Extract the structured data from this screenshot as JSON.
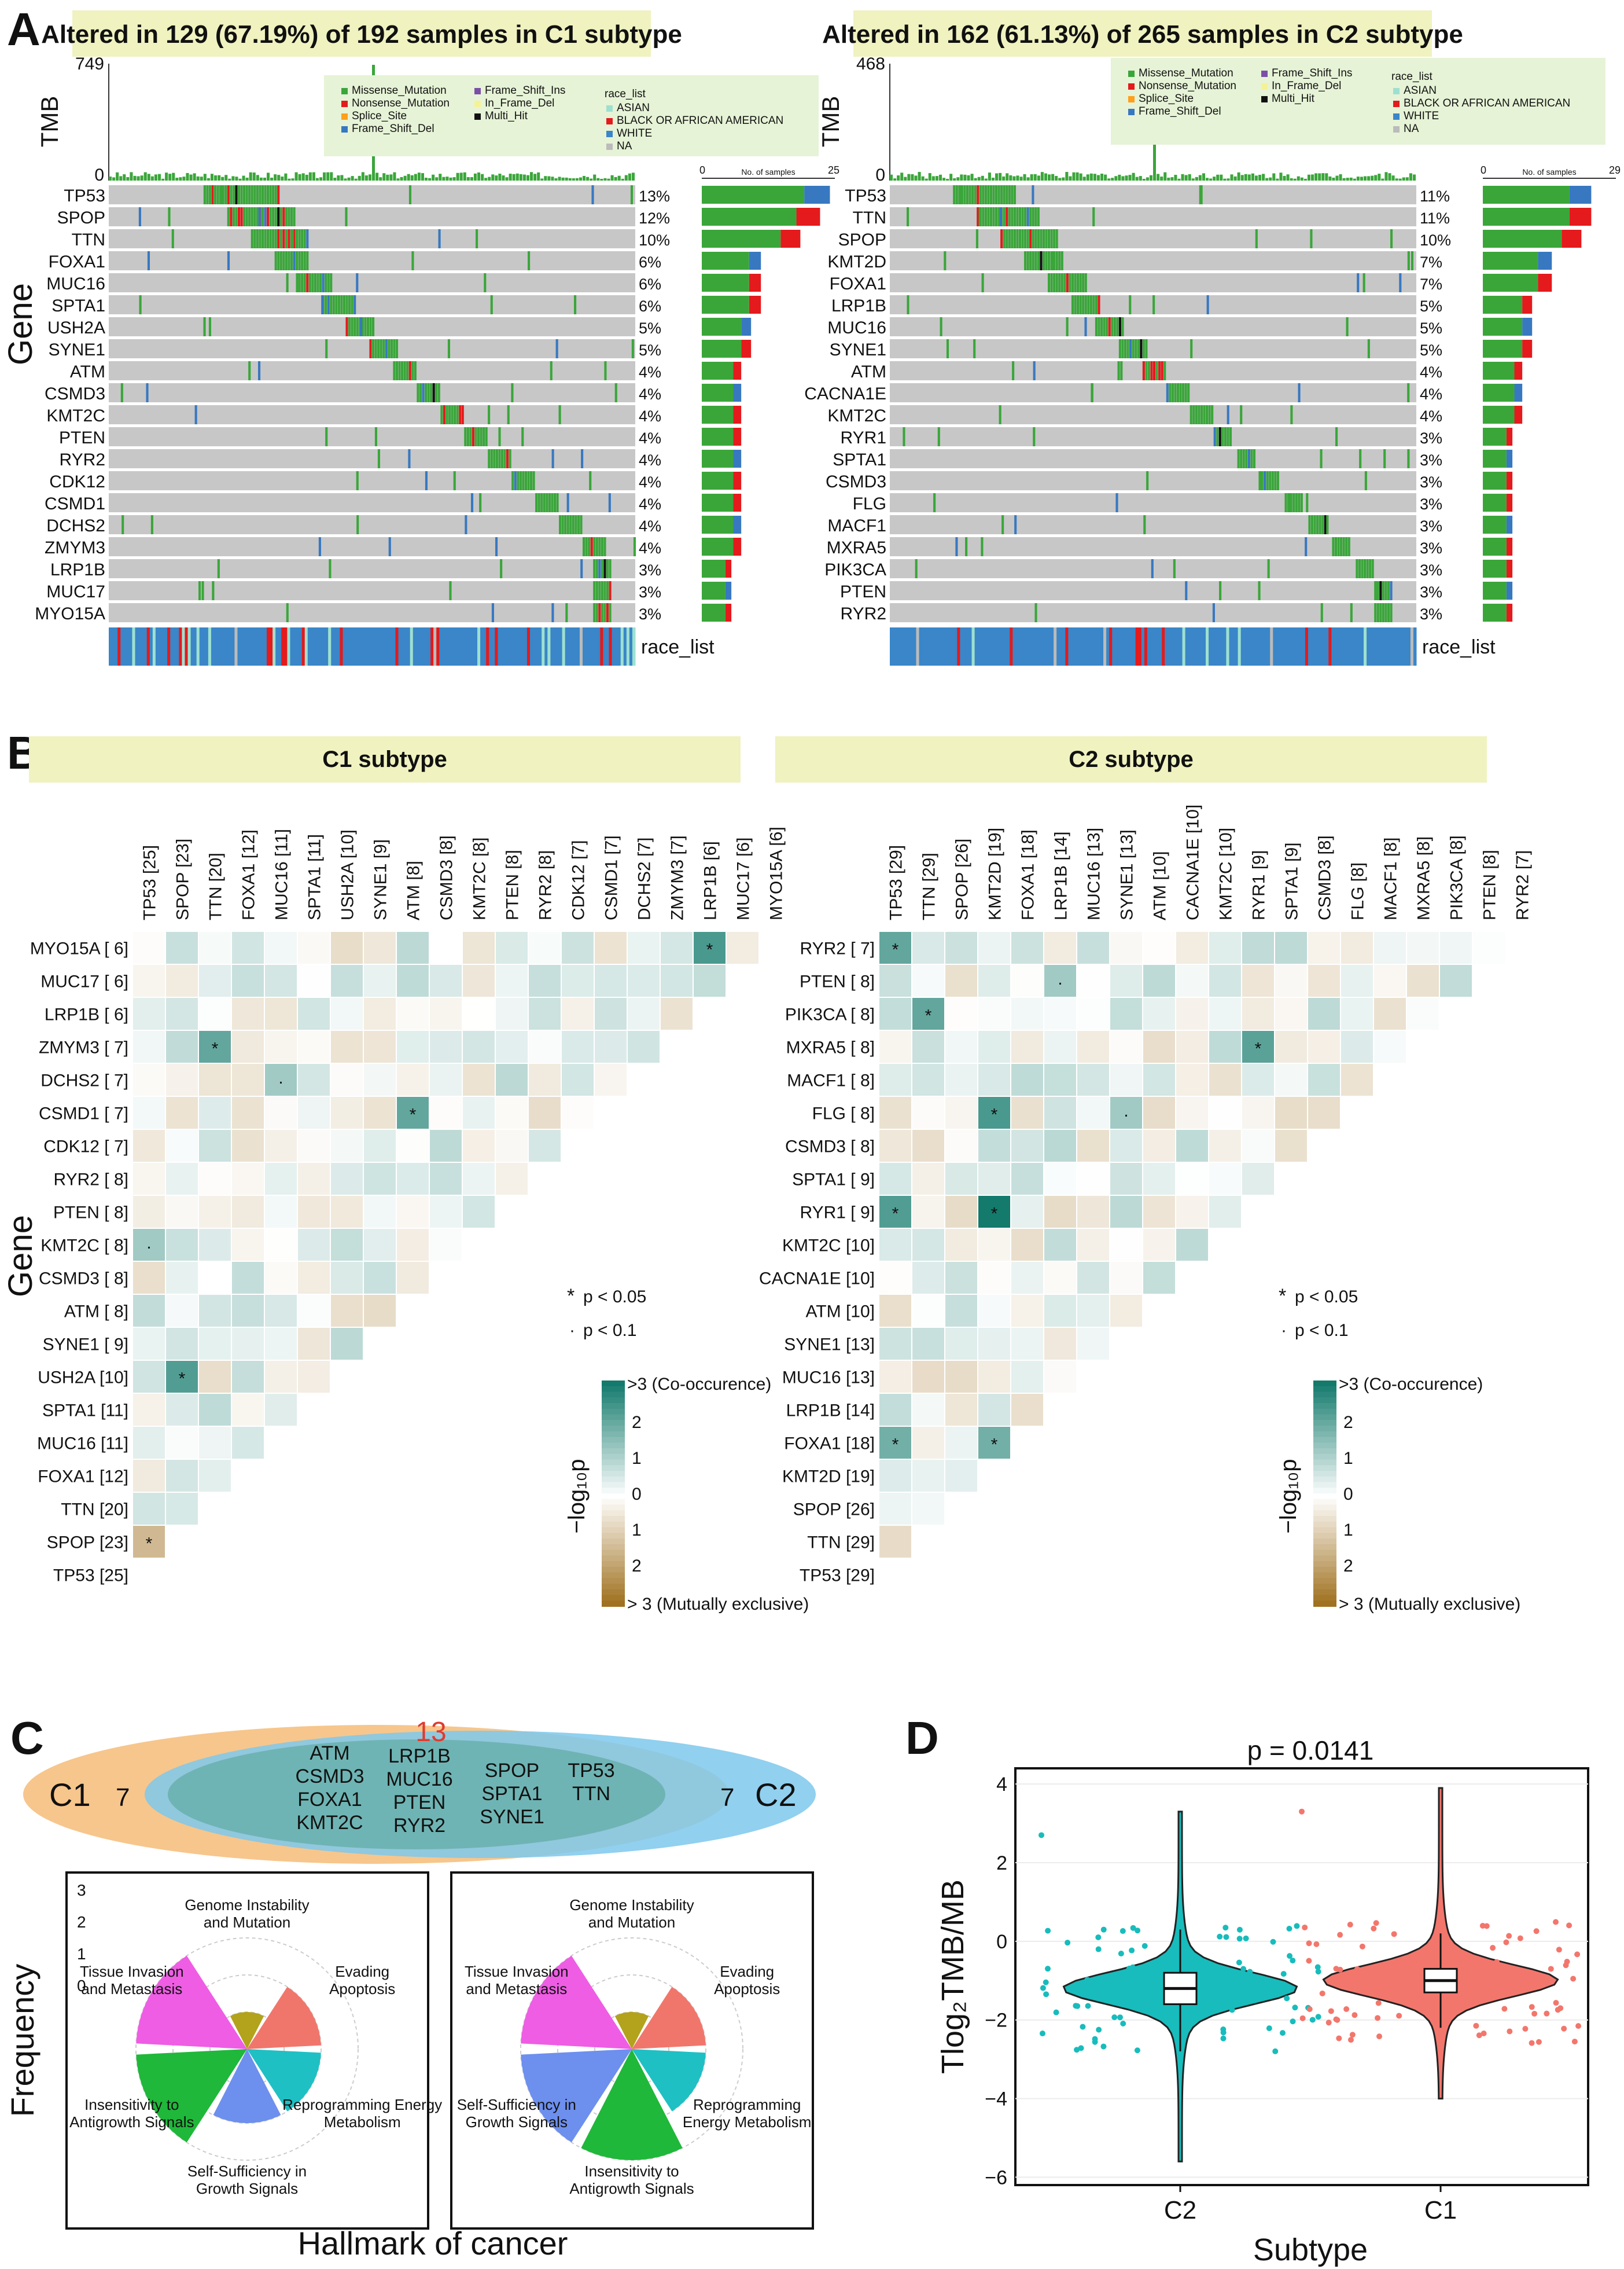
{
  "panels": {
    "A": "A",
    "B": "B",
    "C": "C",
    "D": "D"
  },
  "colors": {
    "missense": "#3aa63a",
    "nonsense": "#e41a1c",
    "splice": "#ff9f1c",
    "frame_shift_del": "#3878c0",
    "frame_shift_ins": "#7b4fa8",
    "in_frame_del": "#f5f296",
    "multi_hit": "#111111",
    "asian": "#9ee0d0",
    "black": "#e41a1c",
    "white": "#3a86c8",
    "na": "#bbbbbb",
    "banner": "#f0f2c0",
    "legend_bg": "#e6f3d6",
    "co": "#137a6c",
    "me": "#9b6a15",
    "venn_c1": "#f7c68c",
    "venn_c2": "#7ec8ec",
    "venn_overlap": "#6fb4b4",
    "hallmark_magenta": "#ee5de4",
    "hallmark_gold": "#b3a21c",
    "hallmark_salmon": "#f0766c",
    "hallmark_teal": "#1ec0c4",
    "hallmark_blue": "#6d8fee",
    "hallmark_green": "#1fb83a",
    "violin_c2": "#18bcbc",
    "violin_c1": "#f3766c"
  },
  "panel_a": {
    "common_legend": {
      "variant_labels": [
        "Missense_Mutation",
        "Nonsense_Mutation",
        "Splice_Site",
        "Frame_Shift_Del",
        "Frame_Shift_Ins",
        "In_Frame_Del",
        "Multi_Hit"
      ],
      "race_title": "race_list",
      "race_labels": [
        "ASIAN",
        "BLACK OR AFRICAN AMERICAN",
        "WHITE",
        "NA"
      ]
    },
    "y_axis_label": "Gene",
    "tmb_label": "TMB",
    "bar_header": "No. of samples",
    "race_row_label": "race_list",
    "plots": [
      {
        "title": "Altered in 129 (67.19%) of 192 samples in C1 subtype",
        "tmb_max": "749",
        "tmb_min": "0",
        "bar_ticks": [
          "0",
          "25"
        ],
        "genes": [
          "TP53",
          "SPOP",
          "TTN",
          "FOXA1",
          "MUC16",
          "SPTA1",
          "USH2A",
          "SYNE1",
          "ATM",
          "CSMD3",
          "KMT2C",
          "PTEN",
          "RYR2",
          "CDK12",
          "CSMD1",
          "DCHS2",
          "ZMYM3",
          "LRP1B",
          "MUC17",
          "MYO15A"
        ],
        "percents": [
          "13%",
          "12%",
          "10%",
          "6%",
          "6%",
          "6%",
          "5%",
          "5%",
          "4%",
          "4%",
          "4%",
          "4%",
          "4%",
          "4%",
          "4%",
          "4%",
          "4%",
          "3%",
          "3%",
          "3%"
        ]
      },
      {
        "title": "Altered in 162 (61.13%) of 265 samples in C2 subtype",
        "tmb_max": "468",
        "tmb_min": "0",
        "bar_ticks": [
          "0",
          "29"
        ],
        "genes": [
          "TP53",
          "TTN",
          "SPOP",
          "KMT2D",
          "FOXA1",
          "LRP1B",
          "MUC16",
          "SYNE1",
          "ATM",
          "CACNA1E",
          "KMT2C",
          "RYR1",
          "SPTA1",
          "CSMD3",
          "FLG",
          "MACF1",
          "MXRA5",
          "PIK3CA",
          "PTEN",
          "RYR2"
        ],
        "percents": [
          "11%",
          "11%",
          "10%",
          "7%",
          "7%",
          "5%",
          "5%",
          "5%",
          "4%",
          "4%",
          "4%",
          "3%",
          "3%",
          "3%",
          "3%",
          "3%",
          "3%",
          "3%",
          "3%",
          "3%"
        ]
      }
    ]
  },
  "panel_b": {
    "y_axis_label": "Gene",
    "legend": {
      "sig1": "p < 0.05",
      "sig2": "p < 0.1",
      "star": "*",
      "dot": "·",
      "co_label": ">3 (Co-occurence)",
      "me_label": "> 3 (Mutually exclusive)",
      "scale_ticks": [
        "2",
        "1",
        "0",
        "1",
        "2"
      ],
      "axis_label": "−log₁₀p"
    },
    "plots": [
      {
        "title": "C1 subtype",
        "col_labels": [
          "TP53 [25]",
          "SPOP [23]",
          "TTN [20]",
          "FOXA1 [12]",
          "MUC16 [11]",
          "SPTA1 [11]",
          "USH2A [10]",
          "SYNE1 [9]",
          "ATM [8]",
          "CSMD3 [8]",
          "KMT2C [8]",
          "PTEN [8]",
          "RYR2 [8]",
          "CDK12 [7]",
          "CSMD1 [7]",
          "DCHS2 [7]",
          "ZMYM3 [7]",
          "LRP1B [6]",
          "MUC17 [6]",
          "MYO15A [6]"
        ],
        "row_labels": [
          "MYO15A [ 6]",
          "MUC17 [ 6]",
          "LRP1B [ 6]",
          "ZMYM3 [ 7]",
          "DCHS2 [ 7]",
          "CSMD1 [ 7]",
          "CDK12 [ 7]",
          "RYR2 [ 8]",
          "PTEN [ 8]",
          "KMT2C [ 8]",
          "CSMD3 [ 8]",
          "ATM [ 8]",
          "SYNE1 [ 9]",
          "USH2A [10]",
          "SPTA1 [11]",
          "MUC16 [11]",
          "FOXA1 [12]",
          "TTN [20]",
          "SPOP [23]",
          "TP53 [25]"
        ]
      },
      {
        "title": "C2 subtype",
        "col_labels": [
          "TP53 [29]",
          "TTN [29]",
          "SPOP [26]",
          "KMT2D [19]",
          "FOXA1 [18]",
          "LRP1B [14]",
          "MUC16 [13]",
          "SYNE1 [13]",
          "ATM [10]",
          "CACNA1E [10]",
          "KMT2C [10]",
          "RYR1 [9]",
          "SPTA1 [9]",
          "CSMD3 [8]",
          "FLG [8]",
          "MACF1 [8]",
          "MXRA5 [8]",
          "PIK3CA [8]",
          "PTEN [8]",
          "RYR2 [7]"
        ],
        "row_labels": [
          "RYR2 [ 7]",
          "PTEN [ 8]",
          "PIK3CA [ 8]",
          "MXRA5 [ 8]",
          "MACF1 [ 8]",
          "FLG [ 8]",
          "CSMD3 [ 8]",
          "SPTA1 [ 9]",
          "RYR1 [ 9]",
          "KMT2C [10]",
          "CACNA1E [10]",
          "ATM [10]",
          "SYNE1 [13]",
          "MUC16 [13]",
          "LRP1B [14]",
          "FOXA1 [18]",
          "KMT2D [19]",
          "SPOP [26]",
          "TTN [29]",
          "TP53 [29]"
        ]
      }
    ]
  },
  "panel_c": {
    "venn": {
      "c1_label": "C1",
      "c1_only_count": "7",
      "c2_label": "C2",
      "c2_only_count": "7",
      "shared_count": "13",
      "shared_gene_columns": [
        [
          "ATM",
          "CSMD3",
          "FOXA1",
          "KMT2C"
        ],
        [
          "LRP1B",
          "MUC16",
          "PTEN",
          "RYR2"
        ],
        [
          "SPOP",
          "SPTA1",
          "SYNE1"
        ],
        [
          "TP53",
          "TTN"
        ]
      ]
    },
    "y_axis_label": "Frequency",
    "x_axis_label": "Hallmark of cancer",
    "y_ticks": [
      "3",
      "2",
      "1",
      "0"
    ],
    "rose_left": [
      {
        "label": "Tissue Invasion\nand Metastasis",
        "value": 3
      },
      {
        "label": "Genome Instability\nand Mutation",
        "value": 1
      },
      {
        "label": "Evading\nApoptosis",
        "value": 2
      },
      {
        "label": "Reprogramming Energy\nMetabolism",
        "value": 2
      },
      {
        "label": "Self-Sufficiency in\nGrowth Signals",
        "value": 2
      },
      {
        "label": "Insensitivity to\nAntigrowth Signals",
        "value": 3
      }
    ],
    "rose_right": [
      {
        "label": "Tissue Invasion\nand Metastasis",
        "value": 3
      },
      {
        "label": "Genome Instability\nand Mutation",
        "value": 1
      },
      {
        "label": "Evading\nApoptosis",
        "value": 2
      },
      {
        "label": "Reprogramming\nEnergy Metabolism",
        "value": 2
      },
      {
        "label": "Insensitivity to\nAntigrowth Signals",
        "value": 3
      },
      {
        "label": "Self-Sufficiency in\nGrowth Signals",
        "value": 3
      }
    ]
  },
  "chart_data": {
    "type": "violin",
    "title": "p = 0.0141",
    "xlabel": "Subtype",
    "ylabel": "Tlog₂TMB/MB",
    "categories": [
      "C2",
      "C1"
    ],
    "ylim": [
      -6.2,
      4.4
    ],
    "y_ticks": [
      "4",
      "2",
      "0",
      "−2",
      "−4",
      "−6"
    ],
    "series": [
      {
        "name": "C2",
        "median": -1.2,
        "q1": -1.6,
        "q3": -0.8,
        "whisker_low": -2.8,
        "whisker_high": 0.3,
        "min": -5.6,
        "max": 3.3
      },
      {
        "name": "C1",
        "median": -1.0,
        "q1": -1.3,
        "q3": -0.7,
        "whisker_low": -2.2,
        "whisker_high": 0.2,
        "min": -4.0,
        "max": 3.9
      }
    ]
  }
}
